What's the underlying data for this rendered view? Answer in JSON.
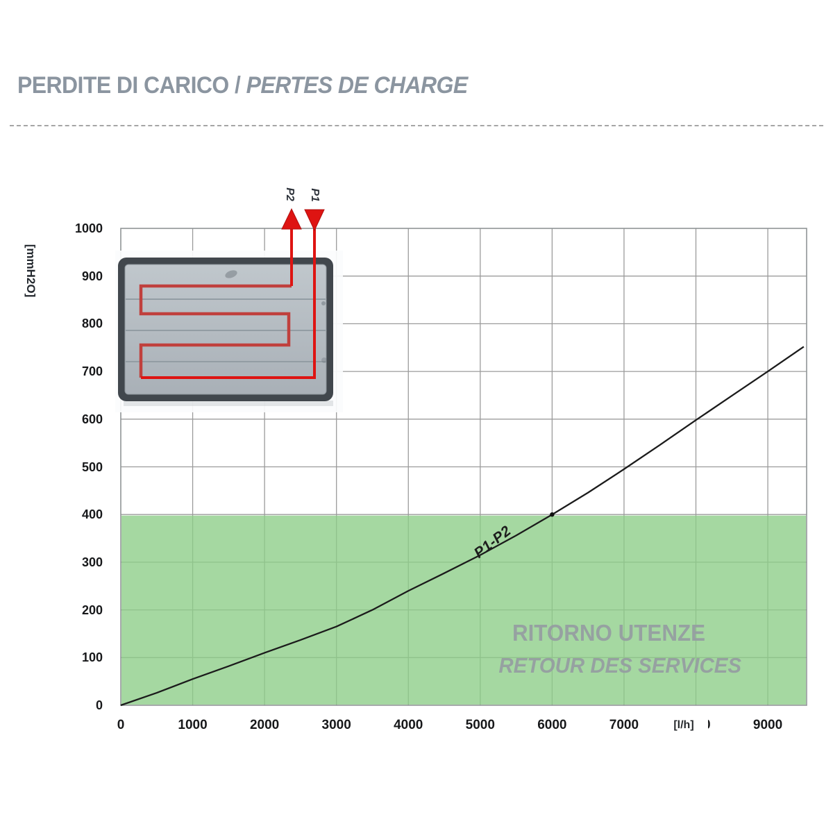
{
  "header": {
    "title_main": "PERDITE DI CARICO / ",
    "title_alt": "PERTES DE CHARGE"
  },
  "chart_data": {
    "type": "line",
    "title": "PERDITE DI CARICO / PERTES DE CHARGE",
    "xlabel": "[l/h]",
    "ylabel": "[mmH2O]",
    "xlim": [
      0,
      9540
    ],
    "ylim": [
      0,
      1000
    ],
    "xticks": [
      0,
      1000,
      2000,
      3000,
      4000,
      5000,
      6000,
      7000,
      8000,
      9000
    ],
    "yticks": [
      0,
      100,
      200,
      300,
      400,
      500,
      600,
      700,
      800,
      900,
      1000
    ],
    "grid": true,
    "legend_position": "none",
    "series": [
      {
        "name": "P1-P2",
        "x": [
          0,
          500,
          1000,
          1500,
          2000,
          2500,
          3000,
          3500,
          4000,
          4500,
          5000,
          5500,
          6000,
          6500,
          7000,
          7500,
          8000,
          8500,
          9000,
          9500
        ],
        "y": [
          0,
          26,
          55,
          82,
          110,
          137,
          165,
          200,
          240,
          277,
          315,
          356,
          400,
          446,
          495,
          546,
          598,
          649,
          700,
          752
        ]
      }
    ],
    "marker_point": {
      "x": 6000,
      "y": 400
    },
    "shaded_zone": {
      "y_from": 0,
      "y_to": 400,
      "label_line1": "RITORNO UTENZE",
      "label_line2": "RETOUR DES SERVICES"
    }
  },
  "inset": {
    "arrow_labels": [
      "P2",
      "P1"
    ]
  },
  "colors": {
    "title_gray": "#8b95a0",
    "grid_gray": "#9b9b9b",
    "border_gray": "#8f9496",
    "zone_green": "#8ccd86",
    "curve_black": "#1b1b1b",
    "pipe_red_bright": "#de1412",
    "pipe_red_muted": "#c0403d",
    "panel_border": "#41474d",
    "panel_fill": "#b2b9bf",
    "watermark_gray": "#959ca2"
  }
}
